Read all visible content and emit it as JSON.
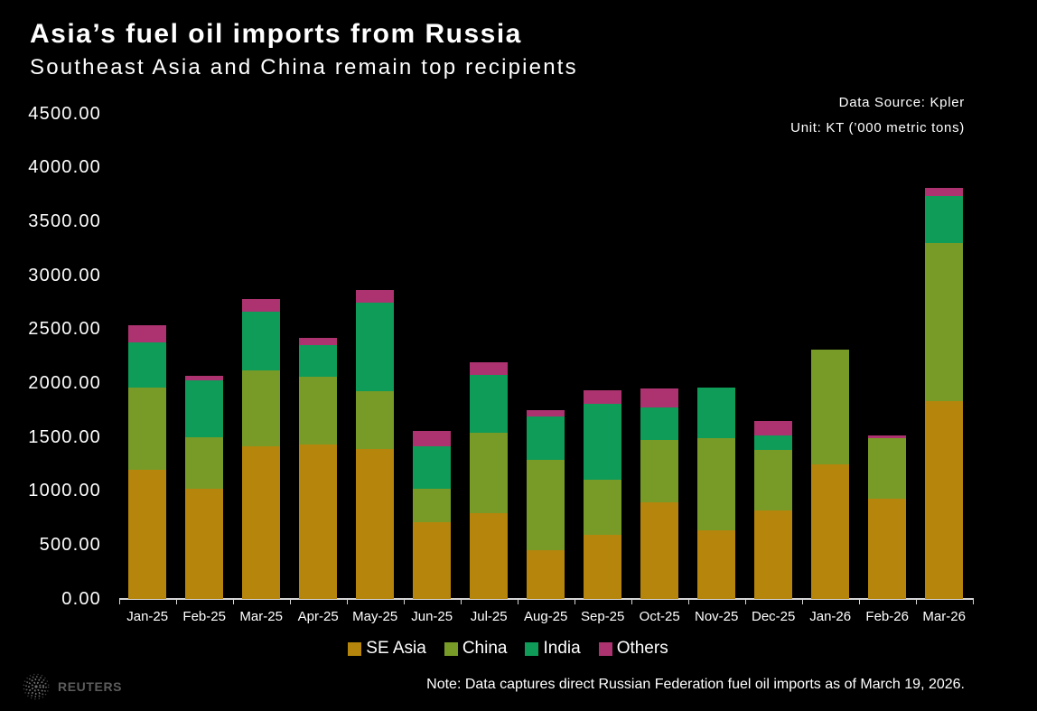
{
  "header": {
    "title": "Asia’s fuel oil imports from Russia",
    "subtitle": "Southeast Asia and China remain top recipients",
    "source_line1": "Data Source: Kpler",
    "source_line2": "Unit: KT (’000 metric tons)"
  },
  "footer": {
    "brand": "REUTERS",
    "note": "Note: Data captures direct Russian Federation fuel oil imports as of March 19, 2026."
  },
  "chart_data": {
    "type": "bar",
    "stacked": true,
    "title": "Asia’s fuel oil imports from Russia",
    "subtitle": "Southeast Asia and China remain top recipients",
    "source": "Kpler",
    "unit": "KT (’000 metric tons)",
    "ylim": [
      0,
      4500
    ],
    "ytick_step": 500,
    "grid": false,
    "legend_position": "bottom",
    "categories": [
      "Jan-25",
      "Feb-25",
      "Mar-25",
      "Apr-25",
      "May-25",
      "Jun-25",
      "Jul-25",
      "Aug-25",
      "Sep-25",
      "Oct-25",
      "Nov-25",
      "Dec-25",
      "Jan-26",
      "Feb-26",
      "Mar-26"
    ],
    "series": [
      {
        "name": "SE Asia",
        "color": "#B5860B",
        "values": [
          1195,
          1020,
          1410,
          1430,
          1390,
          705,
          795,
          445,
          595,
          890,
          635,
          815,
          1245,
          925,
          1835
        ]
      },
      {
        "name": "China",
        "color": "#789B28",
        "values": [
          760,
          480,
          705,
          625,
          530,
          310,
          740,
          840,
          510,
          580,
          855,
          565,
          1065,
          565,
          1465
        ]
      },
      {
        "name": "India",
        "color": "#0F9B58",
        "values": [
          425,
          520,
          545,
          295,
          825,
          395,
          540,
          405,
          705,
          305,
          470,
          135,
          0,
          0,
          435
        ]
      },
      {
        "name": "Others",
        "color": "#AC336F",
        "values": [
          155,
          50,
          120,
          70,
          120,
          145,
          120,
          55,
          125,
          175,
          0,
          135,
          0,
          20,
          75
        ]
      }
    ]
  }
}
